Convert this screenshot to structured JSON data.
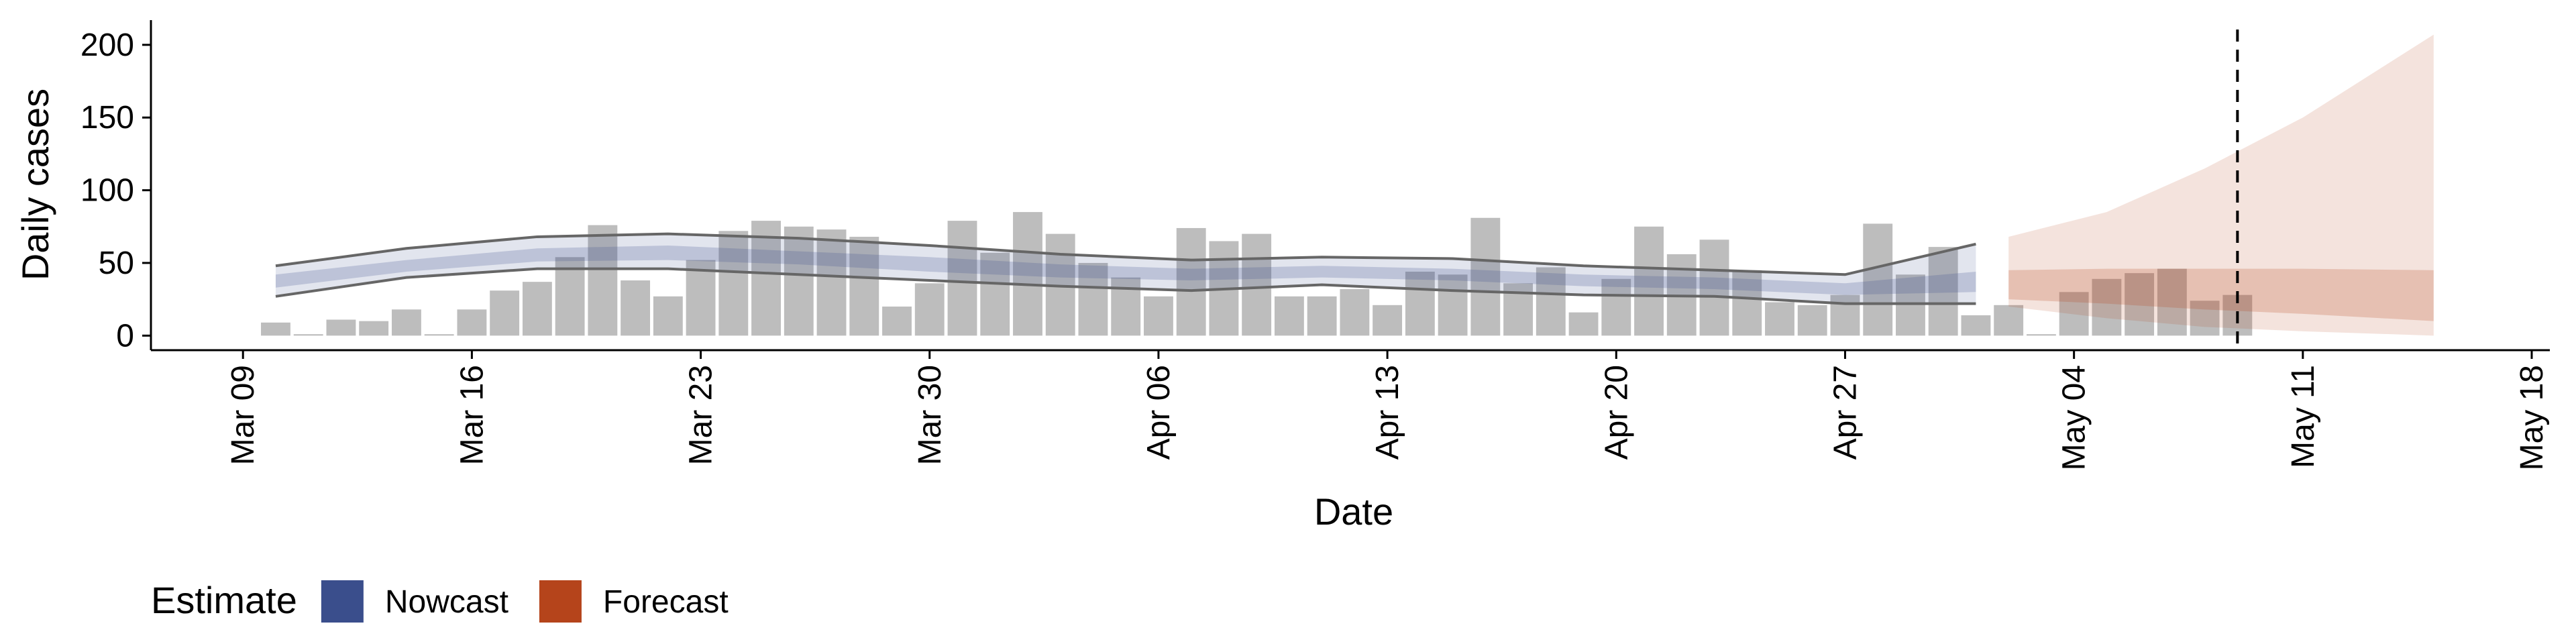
{
  "chart_data": {
    "type": "bar",
    "x_label": "Date",
    "y_label": "Daily cases",
    "x": [
      "03-10",
      "03-11",
      "03-12",
      "03-13",
      "03-14",
      "03-15",
      "03-16",
      "03-17",
      "03-18",
      "03-19",
      "03-20",
      "03-21",
      "03-22",
      "03-23",
      "03-24",
      "03-25",
      "03-26",
      "03-27",
      "03-28",
      "03-29",
      "03-30",
      "03-31",
      "04-01",
      "04-02",
      "04-03",
      "04-04",
      "04-05",
      "04-06",
      "04-07",
      "04-08",
      "04-09",
      "04-10",
      "04-11",
      "04-12",
      "04-13",
      "04-14",
      "04-15",
      "04-16",
      "04-17",
      "04-18",
      "04-19",
      "04-20",
      "04-21",
      "04-22",
      "04-23",
      "04-24",
      "04-25",
      "04-26",
      "04-27",
      "04-28",
      "04-29",
      "04-30",
      "05-01",
      "05-02",
      "05-03",
      "05-04",
      "05-05",
      "05-06",
      "05-07",
      "05-08",
      "05-09"
    ],
    "values": [
      9,
      1,
      11,
      10,
      18,
      1,
      18,
      31,
      37,
      54,
      76,
      38,
      27,
      52,
      72,
      79,
      75,
      73,
      68,
      20,
      36,
      79,
      57,
      85,
      70,
      50,
      40,
      27,
      74,
      65,
      70,
      27,
      27,
      32,
      21,
      44,
      42,
      81,
      36,
      47,
      16,
      39,
      75,
      56,
      66,
      45,
      23,
      21,
      28,
      77,
      42,
      61,
      14,
      21,
      1,
      30,
      39,
      43,
      46,
      24,
      28
    ],
    "color": "#bdbdbd",
    "xlim": [
      "03-06",
      "05-18"
    ],
    "xticks": [
      {
        "value": "03-09",
        "label": "Mar 09"
      },
      {
        "value": "03-16",
        "label": "Mar 16"
      },
      {
        "value": "03-23",
        "label": "Mar 23"
      },
      {
        "value": "03-30",
        "label": "Mar 30"
      },
      {
        "value": "04-06",
        "label": "Apr 06"
      },
      {
        "value": "04-13",
        "label": "Apr 13"
      },
      {
        "value": "04-20",
        "label": "Apr 20"
      },
      {
        "value": "04-27",
        "label": "Apr 27"
      },
      {
        "value": "05-04",
        "label": "May 04"
      },
      {
        "value": "05-11",
        "label": "May 11"
      },
      {
        "value": "05-18",
        "label": "May 18"
      }
    ],
    "ylim": [
      -10,
      217
    ],
    "yticks": [
      0,
      50,
      100,
      150,
      200
    ],
    "vline": "05-09",
    "legend": {
      "title": "Estimate",
      "position": "bottom-left"
    },
    "bands": [
      {
        "name": "Nowcast",
        "color": "#3a4e8c",
        "outline": "#666666",
        "x": [
          "03-10",
          "03-14",
          "03-18",
          "03-22",
          "03-26",
          "03-30",
          "04-03",
          "04-07",
          "04-11",
          "04-15",
          "04-19",
          "04-23",
          "04-27",
          "05-01"
        ],
        "upper90": [
          48,
          60,
          68,
          70,
          67,
          62,
          56,
          52,
          54,
          53,
          48,
          45,
          42,
          63
        ],
        "lower90": [
          27,
          40,
          46,
          46,
          42,
          38,
          34,
          31,
          35,
          31,
          28,
          27,
          22,
          22
        ],
        "upper50": [
          42,
          52,
          60,
          62,
          58,
          54,
          49,
          46,
          48,
          46,
          42,
          40,
          36,
          44
        ],
        "lower50": [
          33,
          44,
          51,
          52,
          49,
          44,
          40,
          38,
          40,
          38,
          34,
          32,
          28,
          30
        ]
      },
      {
        "name": "Forecast",
        "color": "#b5441b",
        "x": [
          "05-02",
          "05-05",
          "05-08",
          "05-11",
          "05-15"
        ],
        "upper90": [
          68,
          85,
          115,
          150,
          207
        ],
        "lower90": [
          20,
          12,
          6,
          3,
          0
        ],
        "upper50": [
          45,
          46,
          46,
          46,
          45
        ],
        "lower50": [
          25,
          22,
          18,
          15,
          10
        ]
      }
    ]
  }
}
